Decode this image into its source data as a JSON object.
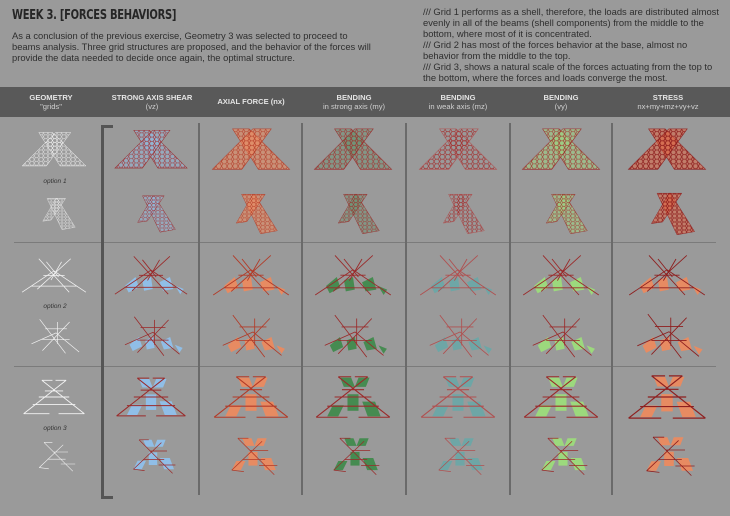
{
  "page": {
    "title": "WEEK 3. [FORCES BEHAVIORS]",
    "intro": "As a conclusion of the previous exercise, Geometry 3 was selected to proceed to beams analysis. Three grid structures are proposed, and the behavior of the forces will provide the data needed to decide once again, the optimal structure.",
    "notes": [
      "/// Grid 1 performs as a shell, therefore, the loads are distributed almost evenly in all of the beams (shell components) from the middle to the bottom, where most of it is concentrated.",
      "/// Grid 2 has most of the forces behavior at the base, almost no behavior from the middle to the top.",
      "/// Grid 3, shows a natural scale of the forces actuating from the top to the bottom, where the forces and loads converge the most."
    ]
  },
  "columns": [
    {
      "title": "GEOMETRY",
      "subtitle": "\"grids\""
    },
    {
      "title": "STRONG AXIS SHEAR",
      "subtitle": "(vz)"
    },
    {
      "title": "AXIAL FORCE (nx)",
      "subtitle": ""
    },
    {
      "title": "BENDING",
      "subtitle": "in strong axis (my)"
    },
    {
      "title": "BENDING",
      "subtitle": "in weak axis (mz)"
    },
    {
      "title": "BENDING",
      "subtitle": "(vy)"
    },
    {
      "title": "STRESS",
      "subtitle": "nx+my+mz+vy+vz"
    }
  ],
  "rows": [
    {
      "label": "option 1",
      "grid": "hex-shell"
    },
    {
      "label": "option 2",
      "grid": "irregular"
    },
    {
      "label": "option 3",
      "grid": "diamond"
    }
  ],
  "colors": {
    "background": "#9a9a9a",
    "header_bar": "#595959",
    "geometry_stroke": "#f2f2f2",
    "frame_red": "#9a2a2a",
    "shear_blue": "#8fc3f0",
    "axial_orange": "#f08a5c",
    "bending_my_green": "#3e8a4a",
    "bending_mz_teal": "#6aa8a8",
    "bending_vy_lightgreen": "#9de07a",
    "stress_mix": "#e8603a"
  }
}
